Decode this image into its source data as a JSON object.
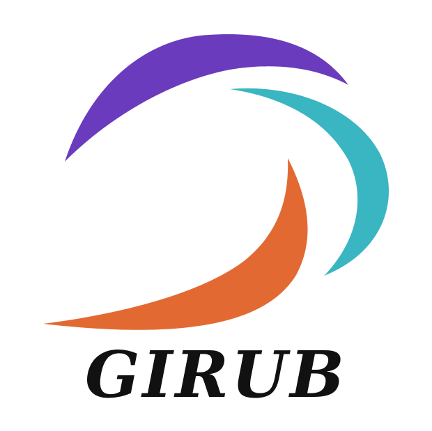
{
  "logo": {
    "wordmark": "GIRUB",
    "colors": {
      "purple_swoosh": "#6a3bbd",
      "teal_swoosh": "#3ab5c2",
      "orange_swoosh": "#e26a32",
      "wordmark": "#111111",
      "background": "#ffffff"
    }
  }
}
